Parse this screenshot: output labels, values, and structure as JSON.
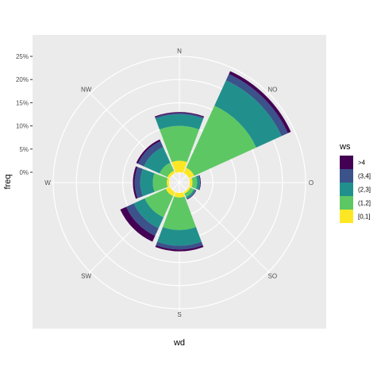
{
  "chart_data": {
    "type": "wind-rose",
    "xlabel": "wd",
    "ylabel": "freq",
    "ylim": [
      0,
      0.25
    ],
    "y_ticks": [
      0,
      0.05,
      0.1,
      0.15,
      0.2,
      0.25
    ],
    "y_tick_labels": [
      "0%",
      "5%",
      "10%",
      "15%",
      "20%",
      "25%"
    ],
    "directions": [
      "N",
      "NO",
      "O",
      "SO",
      "S",
      "SW",
      "W",
      "NW"
    ],
    "sector_angles_deg": [
      0,
      45,
      90,
      135,
      180,
      225,
      270,
      315
    ],
    "sectors": [
      {
        "center_deg": 0,
        "cumulative": [
          0.025,
          0.1,
          0.125,
          0.128,
          0.13
        ]
      },
      {
        "center_deg": 45,
        "cumulative": [
          0.013,
          0.16,
          0.22,
          0.235,
          0.242
        ]
      },
      {
        "center_deg": 90,
        "cumulative": [
          0.006,
          0.016,
          0.022,
          0.023,
          0.024
        ]
      },
      {
        "center_deg": 135,
        "cumulative": [
          0.004,
          0.012,
          0.016,
          0.017,
          0.018
        ]
      },
      {
        "center_deg": 180,
        "cumulative": [
          0.01,
          0.08,
          0.114,
          0.122,
          0.126
        ]
      },
      {
        "center_deg": 225,
        "cumulative": [
          0.01,
          0.06,
          0.086,
          0.104,
          0.118
        ]
      },
      {
        "center_deg": 270,
        "cumulative": [
          0.005,
          0.035,
          0.062,
          0.074,
          0.078
        ]
      },
      {
        "center_deg": 315,
        "cumulative": [
          0.006,
          0.025,
          0.062,
          0.076,
          0.08
        ]
      }
    ],
    "legend": {
      "title": "ws",
      "placement": "right",
      "entries": [
        {
          "label": ">4",
          "color": "#440154"
        },
        {
          "label": "(3,4]",
          "color": "#3B528B"
        },
        {
          "label": "(2,3]",
          "color": "#21908C"
        },
        {
          "label": "(1,2]",
          "color": "#5DC863"
        },
        {
          "label": "[0,1]",
          "color": "#FDE725"
        }
      ]
    },
    "stack_colors_inner_to_outer": [
      "#FDE725",
      "#5DC863",
      "#21908C",
      "#3B528B",
      "#440154"
    ],
    "panel_background": "#EBEBEB",
    "grid_color": "#FFFFFF"
  }
}
